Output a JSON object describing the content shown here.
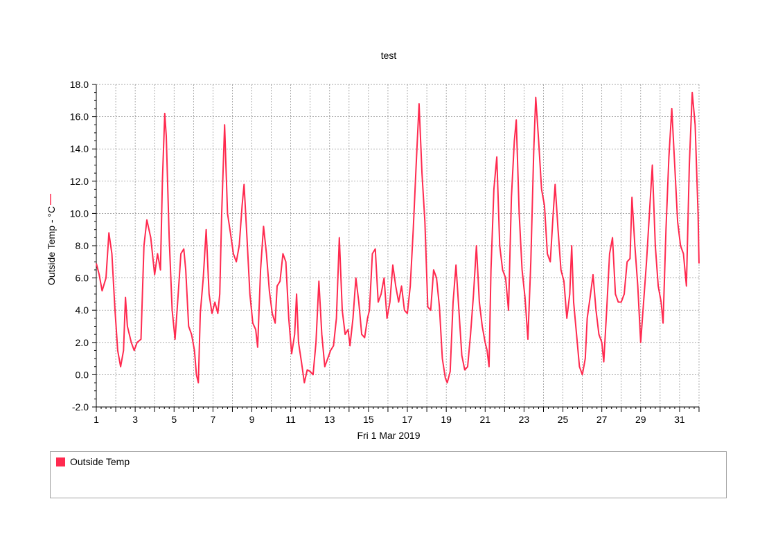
{
  "chart_data": {
    "type": "line",
    "title": "test",
    "xlabel": "Fri 1 Mar 2019",
    "ylabel": "Outside Temp - °C",
    "x_unit": "day of March 2019",
    "xlim": [
      1,
      32
    ],
    "ylim": [
      -2,
      18
    ],
    "x_ticks": [
      1,
      2,
      3,
      4,
      5,
      6,
      7,
      8,
      9,
      10,
      11,
      12,
      13,
      14,
      15,
      16,
      17,
      18,
      19,
      20,
      21,
      22,
      23,
      24,
      25,
      26,
      27,
      28,
      29,
      30,
      31,
      32
    ],
    "x_tick_labels": [
      "1",
      "3",
      "5",
      "7",
      "9",
      "11",
      "13",
      "15",
      "17",
      "19",
      "21",
      "23",
      "25",
      "27",
      "29",
      "31"
    ],
    "x_tick_label_values": [
      1,
      3,
      5,
      7,
      9,
      11,
      13,
      15,
      17,
      19,
      21,
      23,
      25,
      27,
      29,
      31
    ],
    "y_ticks": [
      -2,
      0,
      2,
      4,
      6,
      8,
      10,
      12,
      14,
      16,
      18
    ],
    "y_tick_labels": [
      "-2.0",
      "0.0",
      "2.0",
      "4.0",
      "6.0",
      "8.0",
      "10.0",
      "12.0",
      "14.0",
      "16.0",
      "18.0"
    ],
    "grid": true,
    "legend_position": "bottom",
    "series": [
      {
        "name": "Outside Temp",
        "color": "#ff2a4f",
        "points": [
          [
            1.0,
            6.9
          ],
          [
            1.15,
            6.2
          ],
          [
            1.3,
            5.2
          ],
          [
            1.5,
            6.0
          ],
          [
            1.65,
            8.8
          ],
          [
            1.8,
            7.5
          ],
          [
            1.95,
            4.2
          ],
          [
            2.1,
            1.5
          ],
          [
            2.25,
            0.5
          ],
          [
            2.4,
            1.5
          ],
          [
            2.5,
            4.8
          ],
          [
            2.6,
            3.0
          ],
          [
            2.8,
            2.0
          ],
          [
            2.95,
            1.5
          ],
          [
            3.1,
            2.0
          ],
          [
            3.3,
            2.2
          ],
          [
            3.45,
            8.0
          ],
          [
            3.6,
            9.6
          ],
          [
            3.8,
            8.5
          ],
          [
            4.0,
            6.2
          ],
          [
            4.15,
            7.5
          ],
          [
            4.3,
            6.5
          ],
          [
            4.4,
            12.0
          ],
          [
            4.52,
            16.2
          ],
          [
            4.6,
            14.8
          ],
          [
            4.75,
            8.5
          ],
          [
            4.9,
            4.0
          ],
          [
            5.05,
            2.2
          ],
          [
            5.2,
            4.8
          ],
          [
            5.35,
            7.5
          ],
          [
            5.5,
            7.8
          ],
          [
            5.6,
            6.5
          ],
          [
            5.75,
            3.0
          ],
          [
            5.9,
            2.5
          ],
          [
            6.05,
            1.5
          ],
          [
            6.15,
            0.0
          ],
          [
            6.25,
            -0.5
          ],
          [
            6.35,
            3.8
          ],
          [
            6.5,
            6.0
          ],
          [
            6.65,
            9.0
          ],
          [
            6.8,
            5.0
          ],
          [
            6.95,
            3.8
          ],
          [
            7.1,
            4.5
          ],
          [
            7.25,
            3.8
          ],
          [
            7.35,
            5.0
          ],
          [
            7.45,
            10.0
          ],
          [
            7.6,
            15.5
          ],
          [
            7.75,
            10.0
          ],
          [
            7.9,
            8.8
          ],
          [
            8.05,
            7.5
          ],
          [
            8.2,
            7.0
          ],
          [
            8.35,
            8.0
          ],
          [
            8.5,
            10.5
          ],
          [
            8.6,
            11.8
          ],
          [
            8.75,
            8.5
          ],
          [
            8.9,
            5.0
          ],
          [
            9.05,
            3.2
          ],
          [
            9.2,
            2.8
          ],
          [
            9.3,
            1.7
          ],
          [
            9.45,
            6.5
          ],
          [
            9.6,
            9.2
          ],
          [
            9.75,
            7.5
          ],
          [
            9.9,
            5.2
          ],
          [
            10.05,
            3.8
          ],
          [
            10.2,
            3.2
          ],
          [
            10.3,
            5.5
          ],
          [
            10.45,
            5.8
          ],
          [
            10.6,
            7.5
          ],
          [
            10.75,
            7.0
          ],
          [
            10.9,
            3.5
          ],
          [
            11.05,
            1.3
          ],
          [
            11.2,
            2.5
          ],
          [
            11.3,
            5.0
          ],
          [
            11.4,
            2.0
          ],
          [
            11.55,
            0.8
          ],
          [
            11.7,
            -0.5
          ],
          [
            11.85,
            0.3
          ],
          [
            12.0,
            0.2
          ],
          [
            12.15,
            0.0
          ],
          [
            12.3,
            2.0
          ],
          [
            12.45,
            5.8
          ],
          [
            12.6,
            2.5
          ],
          [
            12.75,
            0.5
          ],
          [
            12.9,
            1.0
          ],
          [
            13.05,
            1.5
          ],
          [
            13.2,
            1.8
          ],
          [
            13.35,
            3.5
          ],
          [
            13.5,
            8.5
          ],
          [
            13.65,
            4.0
          ],
          [
            13.8,
            2.5
          ],
          [
            13.95,
            2.8
          ],
          [
            14.05,
            1.8
          ],
          [
            14.2,
            3.5
          ],
          [
            14.35,
            6.0
          ],
          [
            14.5,
            4.5
          ],
          [
            14.65,
            2.5
          ],
          [
            14.8,
            2.3
          ],
          [
            14.95,
            3.5
          ],
          [
            15.05,
            4.0
          ],
          [
            15.2,
            7.5
          ],
          [
            15.35,
            7.8
          ],
          [
            15.5,
            4.5
          ],
          [
            15.65,
            5.0
          ],
          [
            15.8,
            6.0
          ],
          [
            15.95,
            3.5
          ],
          [
            16.1,
            4.5
          ],
          [
            16.25,
            6.8
          ],
          [
            16.4,
            5.5
          ],
          [
            16.55,
            4.5
          ],
          [
            16.7,
            5.5
          ],
          [
            16.85,
            4.0
          ],
          [
            17.0,
            3.8
          ],
          [
            17.15,
            5.5
          ],
          [
            17.3,
            9.0
          ],
          [
            17.45,
            13.0
          ],
          [
            17.6,
            16.8
          ],
          [
            17.75,
            12.5
          ],
          [
            17.9,
            9.5
          ],
          [
            18.05,
            4.2
          ],
          [
            18.2,
            4.0
          ],
          [
            18.35,
            6.5
          ],
          [
            18.5,
            6.0
          ],
          [
            18.65,
            4.2
          ],
          [
            18.8,
            1.0
          ],
          [
            18.95,
            -0.2
          ],
          [
            19.05,
            -0.5
          ],
          [
            19.2,
            0.2
          ],
          [
            19.35,
            4.5
          ],
          [
            19.5,
            6.8
          ],
          [
            19.65,
            4.0
          ],
          [
            19.8,
            1.2
          ],
          [
            19.95,
            0.3
          ],
          [
            20.1,
            0.5
          ],
          [
            20.25,
            2.5
          ],
          [
            20.4,
            5.0
          ],
          [
            20.55,
            8.0
          ],
          [
            20.7,
            4.5
          ],
          [
            20.85,
            3.0
          ],
          [
            21.0,
            2.0
          ],
          [
            21.1,
            1.5
          ],
          [
            21.2,
            0.5
          ],
          [
            21.3,
            6.5
          ],
          [
            21.45,
            11.5
          ],
          [
            21.6,
            13.5
          ],
          [
            21.75,
            8.0
          ],
          [
            21.9,
            6.5
          ],
          [
            22.05,
            6.0
          ],
          [
            22.2,
            4.0
          ],
          [
            22.35,
            11.0
          ],
          [
            22.5,
            14.5
          ],
          [
            22.6,
            15.8
          ],
          [
            22.75,
            10.0
          ],
          [
            22.9,
            6.5
          ],
          [
            23.05,
            4.8
          ],
          [
            23.2,
            2.2
          ],
          [
            23.35,
            7.0
          ],
          [
            23.5,
            14.0
          ],
          [
            23.6,
            17.2
          ],
          [
            23.75,
            14.5
          ],
          [
            23.9,
            11.5
          ],
          [
            24.05,
            10.5
          ],
          [
            24.2,
            7.5
          ],
          [
            24.35,
            7.0
          ],
          [
            24.5,
            10.0
          ],
          [
            24.6,
            11.8
          ],
          [
            24.75,
            9.0
          ],
          [
            24.9,
            6.5
          ],
          [
            25.05,
            5.8
          ],
          [
            25.2,
            3.5
          ],
          [
            25.35,
            5.0
          ],
          [
            25.45,
            8.0
          ],
          [
            25.55,
            4.5
          ],
          [
            25.7,
            2.5
          ],
          [
            25.85,
            0.5
          ],
          [
            26.0,
            0.0
          ],
          [
            26.15,
            1.0
          ],
          [
            26.25,
            3.5
          ],
          [
            26.4,
            4.8
          ],
          [
            26.55,
            6.2
          ],
          [
            26.7,
            4.0
          ],
          [
            26.85,
            2.5
          ],
          [
            27.0,
            2.0
          ],
          [
            27.1,
            0.8
          ],
          [
            27.25,
            4.0
          ],
          [
            27.4,
            7.5
          ],
          [
            27.55,
            8.5
          ],
          [
            27.7,
            5.0
          ],
          [
            27.85,
            4.5
          ],
          [
            28.0,
            4.5
          ],
          [
            28.15,
            5.0
          ],
          [
            28.3,
            7.0
          ],
          [
            28.45,
            7.2
          ],
          [
            28.55,
            11.0
          ],
          [
            28.7,
            8.0
          ],
          [
            28.85,
            5.5
          ],
          [
            29.0,
            2.0
          ],
          [
            29.15,
            4.5
          ],
          [
            29.3,
            7.0
          ],
          [
            29.45,
            10.0
          ],
          [
            29.6,
            13.0
          ],
          [
            29.75,
            8.0
          ],
          [
            29.9,
            5.5
          ],
          [
            30.05,
            4.5
          ],
          [
            30.15,
            3.2
          ],
          [
            30.3,
            9.0
          ],
          [
            30.45,
            13.5
          ],
          [
            30.6,
            16.5
          ],
          [
            30.75,
            13.0
          ],
          [
            30.9,
            9.5
          ],
          [
            31.05,
            8.0
          ],
          [
            31.2,
            7.5
          ],
          [
            31.35,
            5.5
          ],
          [
            31.5,
            13.0
          ],
          [
            31.65,
            17.5
          ],
          [
            31.8,
            15.5
          ],
          [
            31.95,
            10.0
          ],
          [
            32.0,
            6.9
          ]
        ]
      }
    ]
  },
  "legend": {
    "items": [
      {
        "label": "Outside Temp",
        "color": "#ff2a4f"
      }
    ]
  }
}
